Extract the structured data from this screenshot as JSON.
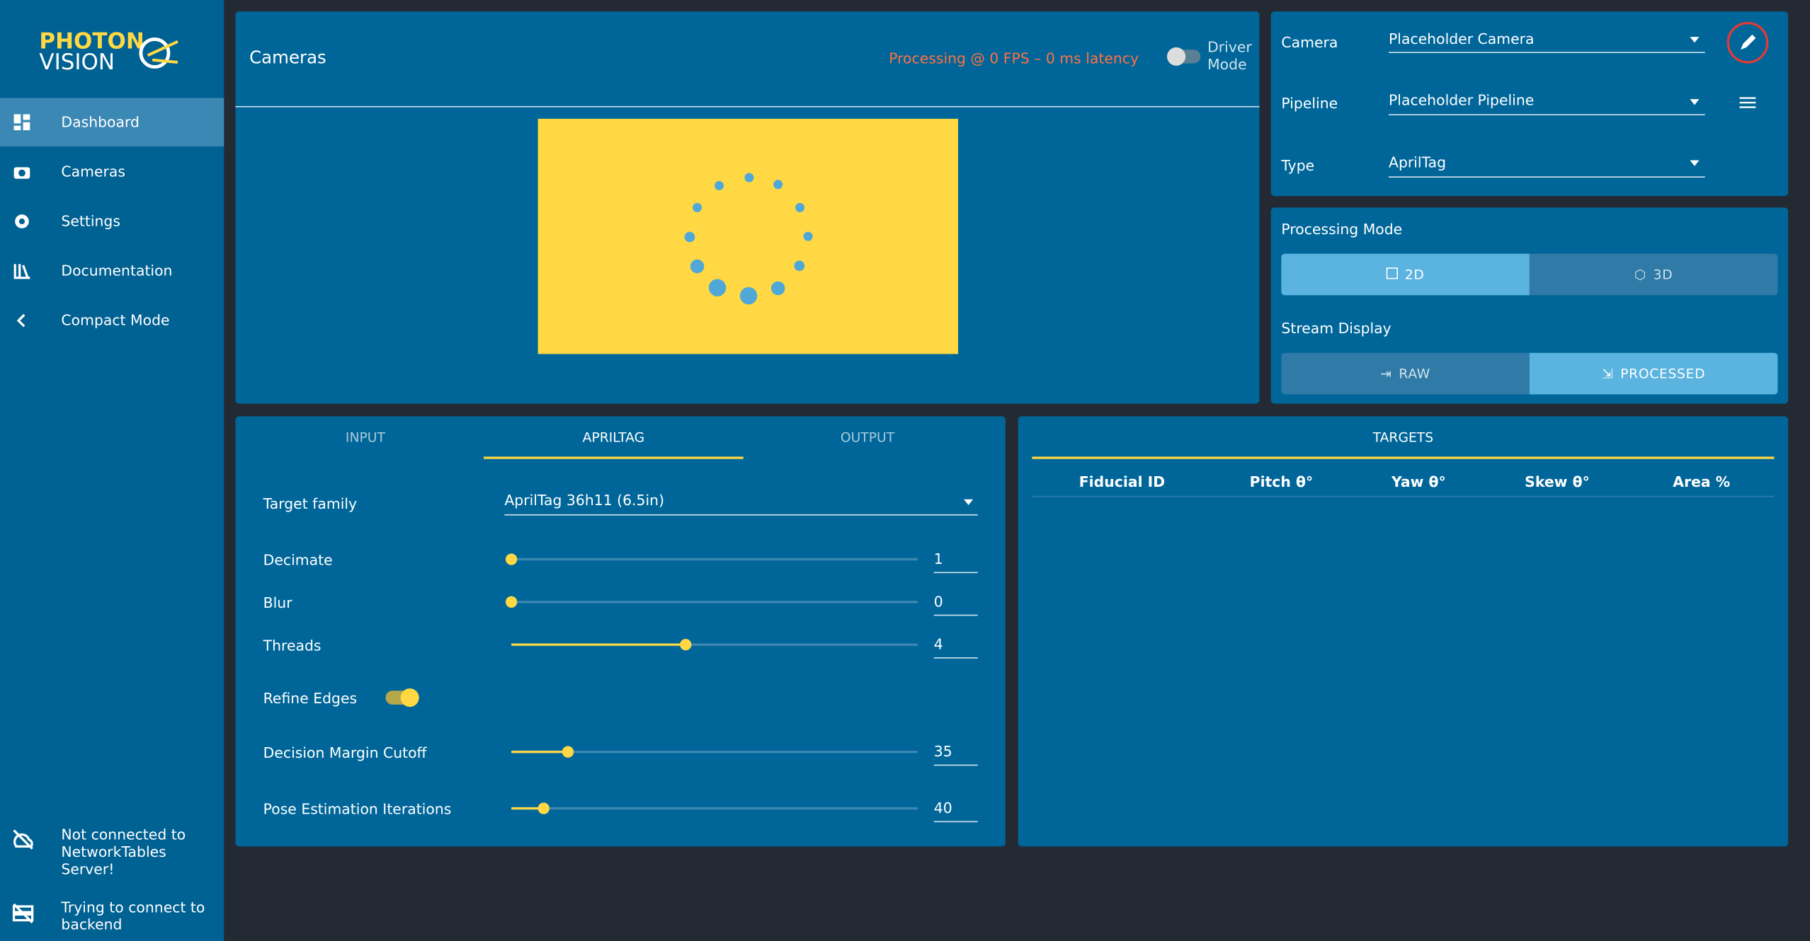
{
  "logo": [
    "PHOTON",
    "VISION"
  ],
  "sidebar": {
    "nav": [
      "Dashboard",
      "Cameras",
      "Settings",
      "Documentation",
      "Compact Mode"
    ],
    "status": [
      "Not connected to NetworkTables Server!",
      "Trying to connect to backend"
    ]
  },
  "cameras_card": {
    "title": "Cameras",
    "status": "Processing @ 0 FPS – 0 ms latency",
    "toggle_label": "Driver Mode"
  },
  "config": {
    "fields": [
      {
        "label": "Camera",
        "value": "Placeholder Camera"
      },
      {
        "label": "Pipeline",
        "value": "Placeholder Pipeline"
      },
      {
        "label": "Type",
        "value": "AprilTag"
      }
    ]
  },
  "modes": {
    "processing_label": "Processing Mode",
    "processing": [
      "2D",
      "3D"
    ],
    "stream_label": "Stream Display",
    "stream": [
      "RAW",
      "PROCESSED"
    ]
  },
  "tabs": [
    "INPUT",
    "APRILTAG",
    "OUTPUT"
  ],
  "settings": {
    "target_family": {
      "label": "Target family",
      "value": "AprilTag 36h11 (6.5in)"
    },
    "decimate": {
      "label": "Decimate",
      "value": 1
    },
    "blur": {
      "label": "Blur",
      "value": 0
    },
    "threads": {
      "label": "Threads",
      "value": 4
    },
    "refine_edges": {
      "label": "Refine Edges"
    },
    "decision_margin": {
      "label": "Decision Margin Cutoff",
      "value": 35
    },
    "pose_iterations": {
      "label": "Pose Estimation Iterations",
      "value": 40
    }
  },
  "targets": {
    "title": "TARGETS",
    "columns": [
      "Fiducial ID",
      "Pitch θ°",
      "Yaw θ°",
      "Skew θ°",
      "Area %"
    ]
  }
}
